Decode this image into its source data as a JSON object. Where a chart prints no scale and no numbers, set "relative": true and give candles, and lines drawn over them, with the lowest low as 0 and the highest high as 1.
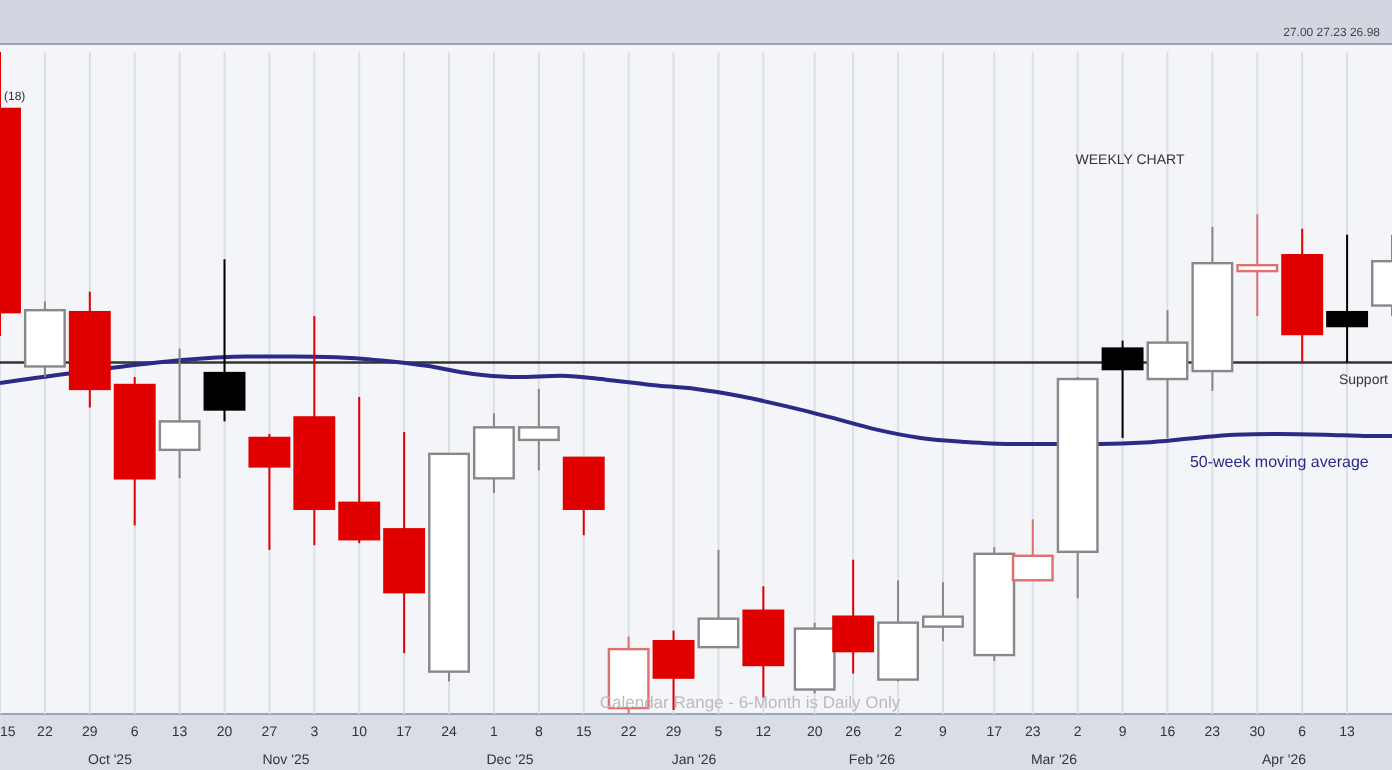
{
  "chart_data": {
    "type": "candlestick",
    "relative": true,
    "grid": "x",
    "x": [
      "2025-09-15",
      "2025-09-22",
      "2025-09-29",
      "2025-10-06",
      "2025-10-13",
      "2025-10-20",
      "2025-10-27",
      "2025-11-03",
      "2025-11-10",
      "2025-11-17",
      "2025-11-24",
      "2025-12-01",
      "2025-12-08",
      "2025-12-15",
      "2025-12-22",
      "2025-12-29",
      "2026-01-05",
      "2026-01-12",
      "2026-01-20",
      "2026-01-26",
      "2026-02-02",
      "2026-02-09",
      "2026-02-17",
      "2026-02-23",
      "2026-03-02",
      "2026-03-09",
      "2026-03-16",
      "2026-03-23",
      "2026-03-30",
      "2026-04-06",
      "2026-04-13",
      "2026-04-20"
    ],
    "ohlc": [
      [
        0.914,
        1.0,
        0.571,
        0.607
      ],
      [
        0.525,
        0.623,
        0.509,
        0.61
      ],
      [
        0.607,
        0.638,
        0.463,
        0.491
      ],
      [
        0.497,
        0.509,
        0.285,
        0.356
      ],
      [
        0.399,
        0.552,
        0.356,
        0.442
      ],
      [
        0.515,
        0.687,
        0.442,
        0.46
      ],
      [
        0.417,
        0.423,
        0.248,
        0.374
      ],
      [
        0.448,
        0.601,
        0.255,
        0.31
      ],
      [
        0.319,
        0.479,
        0.258,
        0.264
      ],
      [
        0.279,
        0.426,
        0.092,
        0.184
      ],
      [
        0.064,
        0.393,
        0.049,
        0.393
      ],
      [
        0.356,
        0.454,
        0.334,
        0.433
      ],
      [
        0.414,
        0.491,
        0.368,
        0.433
      ],
      [
        0.387,
        0.387,
        0.27,
        0.31
      ],
      [
        0.009,
        0.117,
        0.0,
        0.098
      ],
      [
        0.11,
        0.126,
        0.006,
        0.055
      ],
      [
        0.101,
        0.248,
        0.101,
        0.144
      ],
      [
        0.156,
        0.193,
        0.025,
        0.074
      ],
      [
        0.037,
        0.138,
        0.031,
        0.129
      ],
      [
        0.147,
        0.233,
        0.061,
        0.095
      ],
      [
        0.052,
        0.202,
        0.049,
        0.138
      ],
      [
        0.132,
        0.199,
        0.11,
        0.147
      ],
      [
        0.089,
        0.252,
        0.08,
        0.242
      ],
      [
        0.202,
        0.294,
        0.202,
        0.239
      ],
      [
        0.245,
        0.509,
        0.175,
        0.506
      ],
      [
        0.552,
        0.564,
        0.417,
        0.521
      ],
      [
        0.506,
        0.61,
        0.417,
        0.561
      ],
      [
        0.518,
        0.736,
        0.488,
        0.681
      ],
      [
        0.669,
        0.755,
        0.601,
        0.678
      ],
      [
        0.693,
        0.733,
        0.531,
        0.574
      ],
      [
        0.607,
        0.724,
        0.531,
        0.586
      ],
      [
        0.617,
        0.724,
        0.601,
        0.684
      ]
    ],
    "colors": [
      "#e00000",
      "#888888",
      "#e00000",
      "#e00000",
      "#888888",
      "#000000",
      "#e00000",
      "#e00000",
      "#e00000",
      "#e00000",
      "#888888",
      "#888888",
      "#888888",
      "#e00000",
      "#e07070",
      "#e00000",
      "#888888",
      "#e00000",
      "#888888",
      "#e00000",
      "#888888",
      "#888888",
      "#888888",
      "#e07070",
      "#888888",
      "#000000",
      "#888888",
      "#888888",
      "#e07070",
      "#e00000",
      "#000000",
      "#888888"
    ],
    "series": [
      {
        "type": "line",
        "name": "50-week moving average",
        "color": "#2b2b85",
        "x": [
          "2025-09-15",
          "2025-09-18T12:00",
          "2025-09-25T12:00",
          "2025-10-02T12:00",
          "2025-10-09T12:00",
          "2025-10-16T12:00",
          "2025-10-23T12:00",
          "2025-10-30T12:00",
          "2025-11-06T12:00",
          "2025-11-13T12:00",
          "2025-11-20T12:00",
          "2025-11-27T12:00",
          "2025-12-04T12:00",
          "2025-12-11T12:00",
          "2025-12-18T12:00",
          "2025-12-25T12:00",
          "2026-01-01T12:00",
          "2026-01-08T12:00",
          "2026-01-15T12:00",
          "2026-01-22T12:00",
          "2026-01-29T12:00",
          "2026-02-05T12:00",
          "2026-02-12T12:00",
          "2026-02-19T12:00",
          "2026-02-26T12:00",
          "2026-03-05T12:00",
          "2026-03-12T12:00",
          "2026-03-19T12:00",
          "2026-03-26T12:00",
          "2026-04-02T12:00",
          "2026-04-09T12:00",
          "2026-04-16T12:00",
          "2026-04-20"
        ],
        "values": [
          0.5,
          0.505,
          0.514,
          0.523,
          0.531,
          0.537,
          0.54,
          0.54,
          0.539,
          0.534,
          0.526,
          0.514,
          0.509,
          0.511,
          0.505,
          0.497,
          0.491,
          0.48,
          0.465,
          0.448,
          0.43,
          0.417,
          0.411,
          0.408,
          0.408,
          0.408,
          0.41,
          0.416,
          0.422,
          0.423,
          0.422,
          0.42,
          0.42
        ]
      }
    ],
    "ref_lines": [
      {
        "axis": "y",
        "value": 0.531,
        "label": "Support",
        "color": "#333333"
      }
    ],
    "xlim": [
      "2025-09-15",
      "2026-04-20"
    ],
    "xticks": [
      {
        "value": "2025-09-15",
        "label": "15"
      },
      {
        "value": "2025-09-22",
        "label": "22"
      },
      {
        "value": "2025-09-29",
        "label": "29"
      },
      {
        "value": "2025-10-06",
        "label": "6"
      },
      {
        "value": "2025-10-13",
        "label": "13"
      },
      {
        "value": "2025-10-20",
        "label": "20"
      },
      {
        "value": "2025-10-27",
        "label": "27"
      },
      {
        "value": "2025-11-03",
        "label": "3"
      },
      {
        "value": "2025-11-10",
        "label": "10"
      },
      {
        "value": "2025-11-17",
        "label": "17"
      },
      {
        "value": "2025-11-24",
        "label": "24"
      },
      {
        "value": "2025-12-01",
        "label": "1"
      },
      {
        "value": "2025-12-08",
        "label": "8"
      },
      {
        "value": "2025-12-15",
        "label": "15"
      },
      {
        "value": "2025-12-22",
        "label": "22"
      },
      {
        "value": "2025-12-29",
        "label": "29"
      },
      {
        "value": "2026-01-05",
        "label": "5"
      },
      {
        "value": "2026-01-12",
        "label": "12"
      },
      {
        "value": "2026-01-20",
        "label": "20"
      },
      {
        "value": "2026-01-26",
        "label": "26"
      },
      {
        "value": "2026-02-02",
        "label": "2"
      },
      {
        "value": "2026-02-09",
        "label": "9"
      },
      {
        "value": "2026-02-17",
        "label": "17"
      },
      {
        "value": "2026-02-23",
        "label": "23"
      },
      {
        "value": "2026-03-02",
        "label": "2"
      },
      {
        "value": "2026-03-09",
        "label": "9"
      },
      {
        "value": "2026-03-16",
        "label": "16"
      },
      {
        "value": "2026-03-23",
        "label": "23"
      },
      {
        "value": "2026-03-30",
        "label": "30"
      },
      {
        "value": "2026-04-06",
        "label": "6"
      },
      {
        "value": "2026-04-13",
        "label": "13"
      }
    ],
    "annotations": [
      "(18)",
      "27.00   27.23   26.98",
      "WEEKLY CHART",
      "Calendar Range - 6-Month is Daily Only",
      "Oct '25",
      "Nov '25",
      "Dec '25",
      "Jan '26",
      "Feb '26",
      "Mar '26",
      "Apr '26"
    ]
  }
}
